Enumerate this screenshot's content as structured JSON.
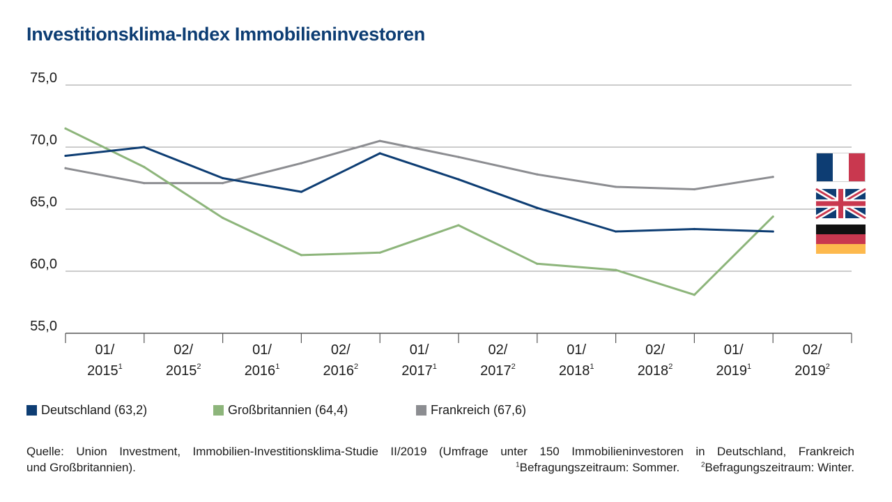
{
  "title": "Investitionsklima-Index Immobilieninvestoren",
  "chart_data": {
    "type": "line",
    "ylim": [
      55,
      75
    ],
    "yticks": [
      "75,0",
      "70,0",
      "65,0",
      "60,0",
      "55,0"
    ],
    "ytick_values": [
      75,
      70,
      65,
      60,
      55
    ],
    "categories": [
      {
        "top": "01/",
        "bottom": "2015",
        "sup": "1"
      },
      {
        "top": "02/",
        "bottom": "2015",
        "sup": "2"
      },
      {
        "top": "01/",
        "bottom": "2016",
        "sup": "1"
      },
      {
        "top": "02/",
        "bottom": "2016",
        "sup": "2"
      },
      {
        "top": "01/",
        "bottom": "2017",
        "sup": "1"
      },
      {
        "top": "02/",
        "bottom": "2017",
        "sup": "2"
      },
      {
        "top": "01/",
        "bottom": "2018",
        "sup": "1"
      },
      {
        "top": "02/",
        "bottom": "2018",
        "sup": "2"
      },
      {
        "top": "01/",
        "bottom": "2019",
        "sup": "1"
      },
      {
        "top": "02/",
        "bottom": "2019",
        "sup": "2"
      }
    ],
    "series": [
      {
        "name": "Deutschland (63,2)",
        "color": "#0d3d73",
        "values": [
          69.3,
          70.0,
          67.5,
          66.4,
          69.5,
          67.4,
          65.1,
          63.2,
          63.4,
          63.2
        ]
      },
      {
        "name": "Großbritannien (64,4)",
        "color": "#8db57b",
        "values": [
          71.5,
          68.4,
          64.3,
          61.3,
          61.5,
          63.7,
          60.6,
          60.1,
          58.1,
          64.4
        ]
      },
      {
        "name": "Frankreich (67,6)",
        "color": "#8c8d91",
        "values": [
          68.3,
          67.1,
          67.1,
          68.7,
          70.5,
          69.2,
          67.8,
          66.8,
          66.6,
          67.6
        ]
      }
    ],
    "grid": true,
    "legend_position": "bottom",
    "flags": [
      "flag-france-icon",
      "flag-uk-icon",
      "flag-germany-icon"
    ]
  },
  "source": {
    "line1": "Quelle: Union Investment, Immobilien-Investitionsklima-Studie II/2019 (Umfrage unter 150 Immobilieninvestoren in Deutschland, Frankreich",
    "line2": "und Großbritannien).",
    "note1_sup": "1",
    "note1": "Befragungszeitraum: Sommer.",
    "note2_sup": "2",
    "note2": "Befragungszeitraum: Winter."
  }
}
